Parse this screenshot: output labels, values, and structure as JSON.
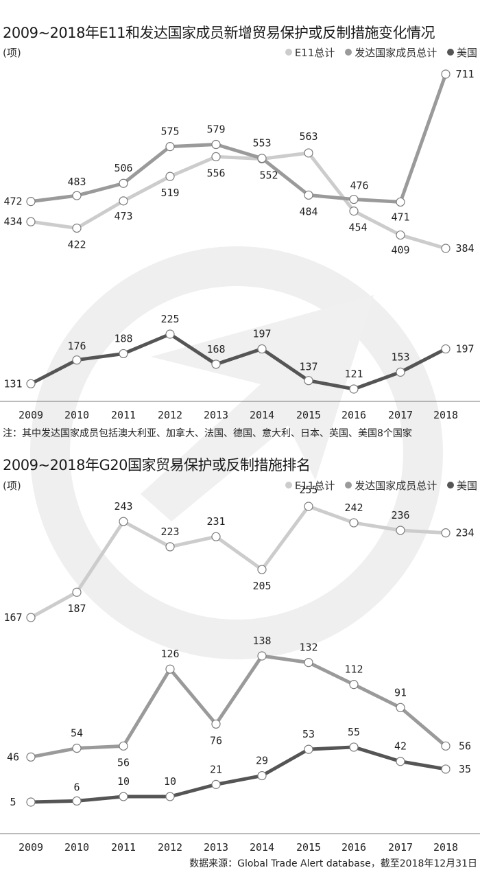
{
  "chart_data": [
    {
      "type": "line",
      "title": "2009~2018年E11和发达国家成员新增贸易保护或反制措施变化情况",
      "unit": "(项)",
      "categories": [
        "2009",
        "2010",
        "2011",
        "2012",
        "2013",
        "2014",
        "2015",
        "2016",
        "2017",
        "2018"
      ],
      "series": [
        {
          "name": "E11总计",
          "color": "#cccccc",
          "values": [
            434,
            422,
            473,
            519,
            556,
            552,
            563,
            454,
            409,
            384
          ]
        },
        {
          "name": "发达国家成员总计",
          "color": "#9a9a9a",
          "values": [
            472,
            483,
            506,
            575,
            579,
            553,
            484,
            476,
            471,
            711
          ]
        },
        {
          "name": "美国",
          "color": "#555555",
          "values": [
            131,
            176,
            188,
            225,
            168,
            197,
            137,
            121,
            153,
            197
          ]
        }
      ],
      "note": "注：其中发达国家成员包括澳大利亚、加拿大、法国、德国、意大利、日本、英国、美国8个国家"
    },
    {
      "type": "line",
      "title": "2009~2018年G20国家贸易保护或反制措施排名",
      "unit": "(项)",
      "categories": [
        "2009",
        "2010",
        "2011",
        "2012",
        "2013",
        "2014",
        "2015",
        "2016",
        "2017",
        "2018"
      ],
      "series": [
        {
          "name": "E11总计",
          "color": "#cccccc",
          "values": [
            167,
            187,
            243,
            223,
            231,
            205,
            255,
            242,
            236,
            234
          ]
        },
        {
          "name": "发达国家成员总计",
          "color": "#9a9a9a",
          "values": [
            46,
            54,
            56,
            126,
            76,
            138,
            132,
            112,
            91,
            56
          ]
        },
        {
          "name": "美国",
          "color": "#555555",
          "values": [
            5,
            6,
            10,
            10,
            21,
            29,
            53,
            55,
            42,
            35
          ]
        }
      ],
      "source": "数据来源：Global Trade Alert database，截至2018年12月31日"
    }
  ]
}
